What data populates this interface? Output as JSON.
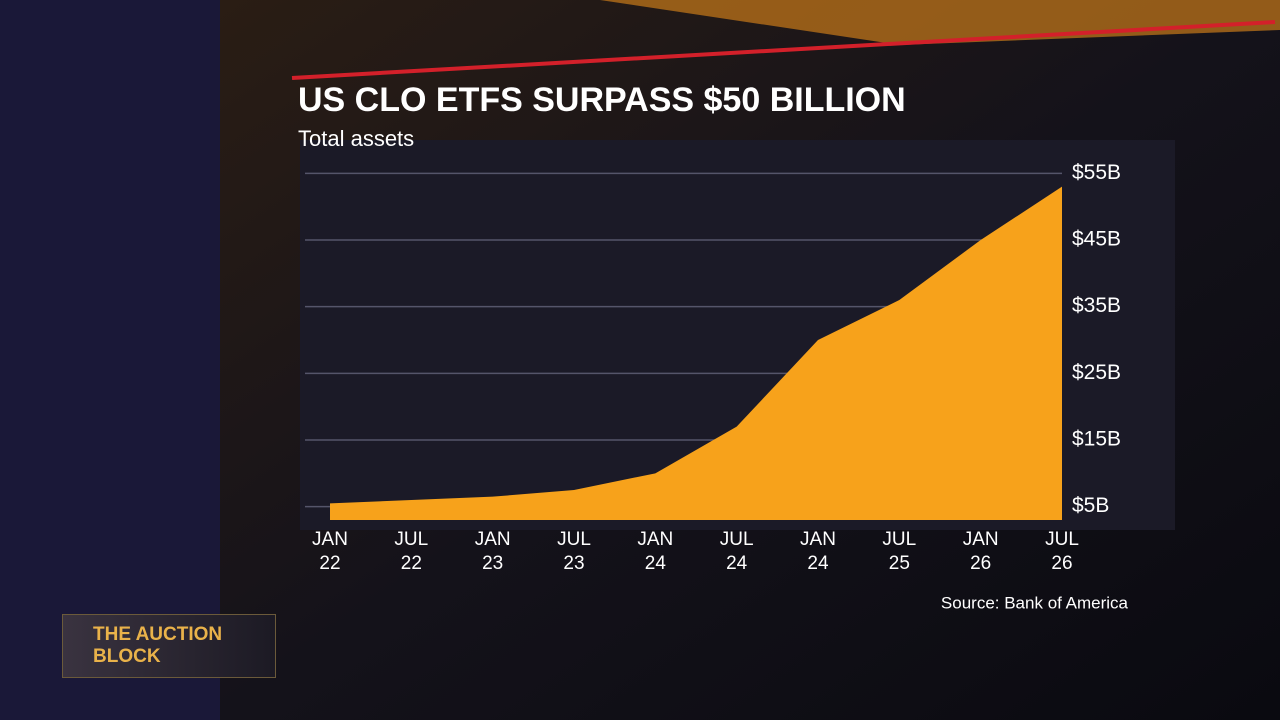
{
  "chart_data": {
    "type": "area",
    "title": "US CLO ETFS SURPASS $50 BILLION",
    "subtitle": "Total assets",
    "source": "Source: Bank of America",
    "categories": [
      "JAN\n22",
      "JUL\n22",
      "JAN\n23",
      "JUL\n23",
      "JAN\n24",
      "JUL\n24",
      "JAN\n24",
      "JUL\n25",
      "JAN\n26",
      "JUL\n26"
    ],
    "values": [
      5.5,
      6,
      6.5,
      7.5,
      10,
      17,
      30,
      36,
      45,
      53
    ],
    "color": "#f7a21b",
    "ylim": [
      3,
      57
    ],
    "yticks": [
      {
        "value": 5,
        "label": "$5B"
      },
      {
        "value": 15,
        "label": "$15B"
      },
      {
        "value": 25,
        "label": "$25B"
      },
      {
        "value": 35,
        "label": "$35B"
      },
      {
        "value": 45,
        "label": "$45B"
      },
      {
        "value": 55,
        "label": "$55B"
      }
    ],
    "grid": true
  },
  "overlay": {
    "show": "THE AUCTION BLOCK"
  }
}
